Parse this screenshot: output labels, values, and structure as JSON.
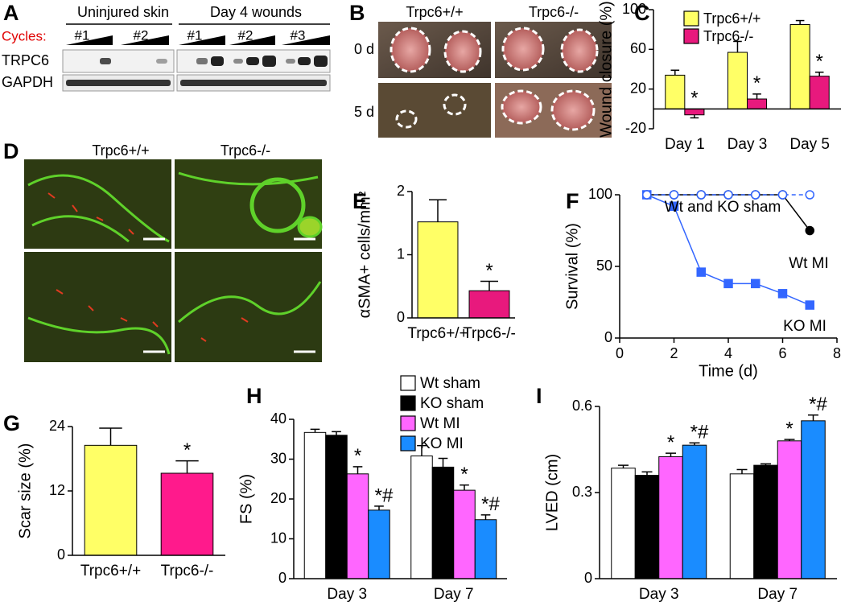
{
  "panels": {
    "letters": [
      "A",
      "B",
      "C",
      "D",
      "E",
      "F",
      "G",
      "H",
      "I"
    ],
    "blot": {
      "groups": [
        "Uninjured skin",
        "Day 4 wounds"
      ],
      "cycles_label": "Cycles:",
      "replicates": [
        "#1",
        "#2",
        "#1",
        "#2",
        "#3"
      ],
      "rows": [
        "TRPC6",
        "GAPDH"
      ]
    },
    "wound_photos": {
      "columns": [
        "Trpc6+/+",
        "Trpc6-/-"
      ],
      "rows": [
        "0 d",
        "5 d"
      ]
    },
    "histology": {
      "columns": [
        "Trpc6+/+",
        "Trpc6-/-"
      ]
    }
  },
  "chart_data": [
    {
      "type": "bar",
      "y_label": "Wound closure (%)",
      "categories": [
        "Day 1",
        "Day 3",
        "Day 5"
      ],
      "series": [
        {
          "name": "Trpc6+/+",
          "color": "#ffff66",
          "values": [
            34,
            57,
            85
          ],
          "errors": [
            5,
            11,
            4
          ]
        },
        {
          "name": "Trpc6-/-",
          "color": "#e8197d",
          "values": [
            -6,
            10,
            33
          ],
          "errors": [
            3,
            5,
            4
          ],
          "annotations": [
            "*",
            "*",
            "*"
          ]
        }
      ],
      "ylim": [
        -20,
        100
      ],
      "yticks": [
        -20,
        20,
        60,
        100
      ],
      "legend": true
    },
    {
      "type": "bar",
      "y_label": "αSMA+ cells/mm²",
      "categories": [
        "Trpc6+/+",
        "Trpc6-/-"
      ],
      "values": [
        1.52,
        0.43
      ],
      "errors": [
        0.35,
        0.15
      ],
      "colors": [
        "#ffff66",
        "#e8197d"
      ],
      "annotations": [
        null,
        "*"
      ],
      "ylim": [
        0,
        2
      ],
      "yticks": [
        0,
        1,
        2
      ]
    },
    {
      "type": "line",
      "x_label": "Time (d)",
      "y_label": "Survival (%)",
      "x": [
        1,
        2,
        3,
        4,
        5,
        6,
        7
      ],
      "series": [
        {
          "name": "Wt MI",
          "color": "#000000",
          "marker": "circle",
          "values": [
            100,
            100,
            100,
            100,
            100,
            100,
            75
          ]
        },
        {
          "name": "KO MI",
          "color": "#3366ff",
          "marker": "square",
          "values": [
            100,
            92,
            46,
            38,
            38,
            31,
            23
          ]
        },
        {
          "name": "Wt and KO sham",
          "color": "#3366ff",
          "marker": "circle",
          "dashed": true,
          "open": true,
          "values": [
            100,
            100,
            100,
            100,
            100,
            100,
            100
          ]
        }
      ],
      "xlim": [
        0,
        8
      ],
      "xticks": [
        0,
        2,
        4,
        6,
        8
      ],
      "ylim": [
        0,
        100
      ],
      "yticks": [
        0,
        50,
        100
      ]
    },
    {
      "type": "bar",
      "y_label": "Scar size (%)",
      "categories": [
        "Trpc6+/+",
        "Trpc6-/-"
      ],
      "values": [
        20.5,
        15.3
      ],
      "errors": [
        3.2,
        2.3
      ],
      "colors": [
        "#ffff66",
        "#ff1a8c"
      ],
      "annotations": [
        null,
        "*"
      ],
      "ylim": [
        0,
        24
      ],
      "yticks": [
        0,
        12,
        24
      ]
    },
    {
      "type": "bar",
      "y_label": "FS (%)",
      "categories": [
        "Day 3",
        "Day 7"
      ],
      "series": [
        {
          "name": "Wt sham",
          "color": "#ffffff",
          "values": [
            36.7,
            30.8
          ],
          "errors": [
            0.8,
            2.6
          ]
        },
        {
          "name": "KO sham",
          "color": "#000000",
          "values": [
            36.0,
            28.0
          ],
          "errors": [
            0.9,
            2.2
          ]
        },
        {
          "name": "Wt MI",
          "color": "#ff66ff",
          "values": [
            26.3,
            22.2
          ],
          "errors": [
            1.8,
            1.3
          ],
          "annotations": [
            "*",
            "*"
          ]
        },
        {
          "name": "KO MI",
          "color": "#1a8cff",
          "values": [
            17.2,
            14.8
          ],
          "errors": [
            1.0,
            1.2
          ],
          "annotations": [
            "*#",
            "*#"
          ]
        }
      ],
      "ylim": [
        0,
        40
      ],
      "yticks": [
        0,
        10,
        20,
        30,
        40
      ],
      "legend": true
    },
    {
      "type": "bar",
      "y_label": "LVED (cm)",
      "categories": [
        "Day 3",
        "Day 7"
      ],
      "series": [
        {
          "color": "#ffffff",
          "values": [
            0.385,
            0.365
          ],
          "errors": [
            0.01,
            0.015
          ]
        },
        {
          "color": "#000000",
          "values": [
            0.36,
            0.395
          ],
          "errors": [
            0.012,
            0.005
          ]
        },
        {
          "color": "#ff66ff",
          "values": [
            0.425,
            0.48
          ],
          "errors": [
            0.012,
            0.005
          ],
          "annotations": [
            "*",
            "*"
          ]
        },
        {
          "color": "#1a8cff",
          "values": [
            0.465,
            0.55
          ],
          "errors": [
            0.008,
            0.02
          ],
          "annotations": [
            "*#",
            "*#"
          ]
        }
      ],
      "ylim": [
        0,
        0.6
      ],
      "yticks": [
        0,
        0.3,
        0.6
      ]
    }
  ]
}
